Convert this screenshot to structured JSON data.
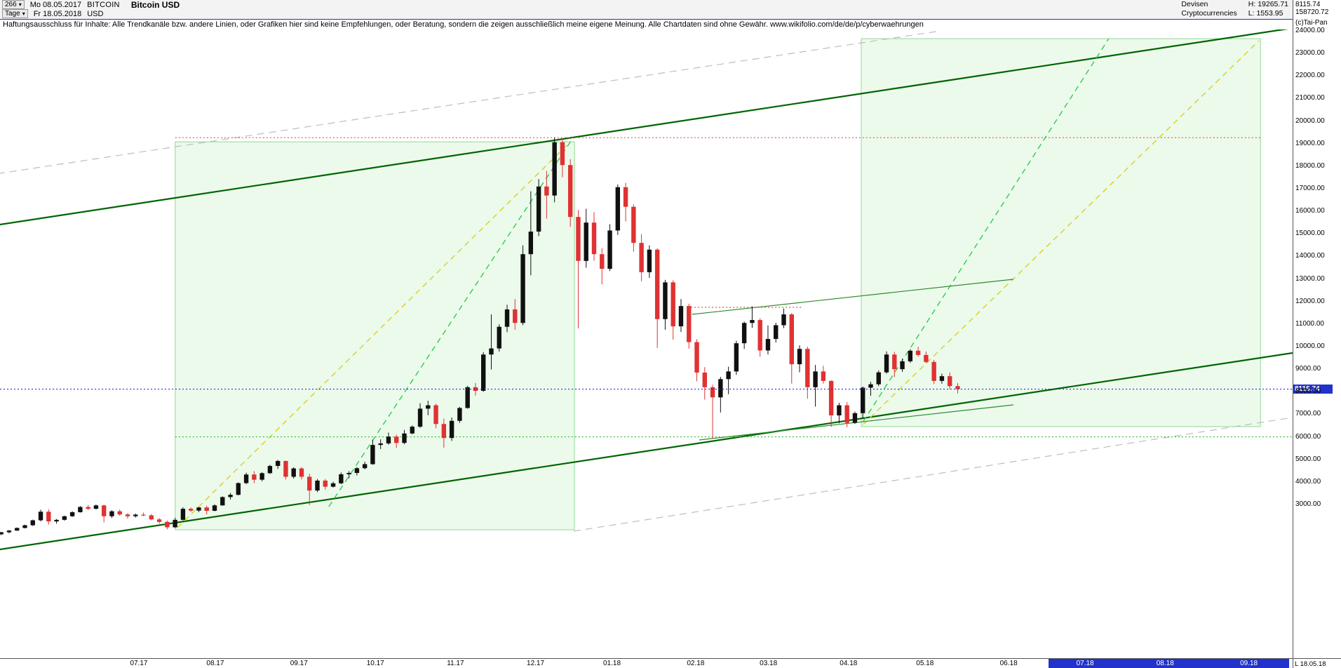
{
  "header": {
    "bars_count": "266",
    "dropdown_icon": "▾",
    "start_date": "Mo 08.05.2017",
    "symbol": "BITCOIN",
    "title": "Bitcoin USD",
    "period": "Tage",
    "end_date": "Fr 18.05.2018",
    "currency": "USD",
    "category_line1": "Devisen",
    "category_line2": "Cryptocurrencies",
    "high": "H: 19265.71",
    "low": "L: 1553.95",
    "last_price": "8115.74",
    "secondary_value": "158720.72",
    "copyright": "(c)Tai-Pan"
  },
  "disclaimer": "Haftungsausschluss für Inhalte: Alle Trendkanäle bzw. andere Linien, oder Grafiken hier sind keine Empfehlungen, oder Beratung, sondern die zeigen ausschließlich meine eigene Meinung. Alle Chartdaten sind ohne Gewähr.  www.wikifolio.com/de/de/p/cyberwaehrungen",
  "axis": {
    "price_tag": "8115.74",
    "corner_label": "L  18.05.18"
  },
  "chart_data": {
    "type": "candlestick",
    "title": "Bitcoin USD",
    "period": {
      "from": "Mo 08.05.2017",
      "to": "Fr 18.05.2018",
      "bars": 266,
      "interval": "Tage"
    },
    "stats": {
      "high": 19265.71,
      "low": 1553.95,
      "last": 8115.74
    },
    "ylim": [
      3000,
      24000
    ],
    "grid": false,
    "y_axis": {
      "tick_labels": [
        "24000.00",
        "23000.00",
        "22000.00",
        "21000.00",
        "20000.00",
        "19000.00",
        "18000.00",
        "17000.00",
        "16000.00",
        "15000.00",
        "14000.00",
        "13000.00",
        "12000.00",
        "11000.00",
        "10000.00",
        "9000.00",
        "8000.00",
        "7000.00",
        "6000.00",
        "5000.00",
        "4000.00",
        "3000.00"
      ]
    },
    "x_axis": {
      "month_labels": [
        {
          "label": "07.17",
          "day": 40,
          "future": false
        },
        {
          "label": "08.17",
          "day": 61,
          "future": false
        },
        {
          "label": "09.17",
          "day": 84,
          "future": false
        },
        {
          "label": "10.17",
          "day": 105,
          "future": false
        },
        {
          "label": "11.17",
          "day": 127,
          "future": false
        },
        {
          "label": "12.17",
          "day": 149,
          "future": false
        },
        {
          "label": "01.18",
          "day": 170,
          "future": false
        },
        {
          "label": "02.18",
          "day": 193,
          "future": false
        },
        {
          "label": "03.18",
          "day": 213,
          "future": false
        },
        {
          "label": "04.18",
          "day": 235,
          "future": false
        },
        {
          "label": "05.18",
          "day": 256,
          "future": false
        },
        {
          "label": "06.18",
          "day": 279,
          "future": false
        },
        {
          "label": "07.18",
          "day": 300,
          "future": true
        },
        {
          "label": "08.18",
          "day": 322,
          "future": true
        },
        {
          "label": "09.18",
          "day": 345,
          "future": true
        }
      ]
    },
    "colors": {
      "up": "#101010",
      "down": "#e03232",
      "accent_blue": "#2233cc"
    },
    "bar_day_step": 2.1721,
    "candles": [
      [
        1650,
        1700,
        1554,
        1680
      ],
      [
        1680,
        1790,
        1640,
        1770
      ],
      [
        1770,
        1870,
        1720,
        1845
      ],
      [
        1845,
        1985,
        1830,
        1960
      ],
      [
        1960,
        2110,
        1940,
        2080
      ],
      [
        2080,
        2330,
        2050,
        2300
      ],
      [
        2300,
        2770,
        2250,
        2680
      ],
      [
        2680,
        2790,
        2110,
        2250
      ],
      [
        2250,
        2360,
        2150,
        2320
      ],
      [
        2320,
        2510,
        2280,
        2480
      ],
      [
        2480,
        2700,
        2450,
        2660
      ],
      [
        2660,
        2930,
        2640,
        2890
      ],
      [
        2890,
        2980,
        2750,
        2810
      ],
      [
        2810,
        3000,
        2780,
        2960
      ],
      [
        2960,
        2990,
        2210,
        2480
      ],
      [
        2480,
        2750,
        2400,
        2700
      ],
      [
        2700,
        2780,
        2500,
        2560
      ],
      [
        2560,
        2620,
        2380,
        2480
      ],
      [
        2480,
        2600,
        2420,
        2550
      ],
      [
        2550,
        2640,
        2480,
        2520
      ],
      [
        2520,
        2580,
        2300,
        2340
      ],
      [
        2340,
        2400,
        2150,
        2230
      ],
      [
        2230,
        2290,
        1900,
        1990
      ],
      [
        1990,
        2410,
        1960,
        2320
      ],
      [
        2320,
        2880,
        2300,
        2810
      ],
      [
        2810,
        2870,
        2670,
        2730
      ],
      [
        2730,
        2890,
        2660,
        2870
      ],
      [
        2870,
        2950,
        2560,
        2720
      ],
      [
        2720,
        3010,
        2700,
        2960
      ],
      [
        2960,
        3360,
        2950,
        3330
      ],
      [
        3330,
        3510,
        3220,
        3430
      ],
      [
        3430,
        3980,
        3400,
        3950
      ],
      [
        3950,
        4410,
        3900,
        4330
      ],
      [
        4330,
        4480,
        3950,
        4100
      ],
      [
        4100,
        4430,
        4030,
        4390
      ],
      [
        4390,
        4760,
        4350,
        4710
      ],
      [
        4710,
        4980,
        4580,
        4930
      ],
      [
        4930,
        4950,
        4110,
        4230
      ],
      [
        4230,
        4650,
        4150,
        4600
      ],
      [
        4600,
        4660,
        4110,
        4230
      ],
      [
        4230,
        4360,
        2980,
        3620
      ],
      [
        3620,
        4130,
        3550,
        4060
      ],
      [
        4060,
        4130,
        3660,
        3790
      ],
      [
        3790,
        4010,
        3750,
        3940
      ],
      [
        3940,
        4420,
        3900,
        4340
      ],
      [
        4340,
        4480,
        4160,
        4400
      ],
      [
        4400,
        4660,
        4290,
        4610
      ],
      [
        4610,
        4900,
        4560,
        4790
      ],
      [
        4790,
        5870,
        4760,
        5640
      ],
      [
        5640,
        5890,
        5460,
        5710
      ],
      [
        5710,
        6190,
        5650,
        6010
      ],
      [
        6010,
        6100,
        5510,
        5730
      ],
      [
        5730,
        6310,
        5670,
        6150
      ],
      [
        6150,
        6510,
        6110,
        6450
      ],
      [
        6450,
        7490,
        6400,
        7250
      ],
      [
        7250,
        7600,
        6960,
        7400
      ],
      [
        7400,
        7470,
        6380,
        6570
      ],
      [
        6570,
        6810,
        5520,
        5950
      ],
      [
        5950,
        6860,
        5820,
        6710
      ],
      [
        6710,
        7330,
        6620,
        7280
      ],
      [
        7280,
        8260,
        7250,
        8200
      ],
      [
        8200,
        8390,
        7830,
        8040
      ],
      [
        8040,
        9760,
        8000,
        9650
      ],
      [
        9650,
        11430,
        8990,
        9920
      ],
      [
        9920,
        10990,
        9780,
        10880
      ],
      [
        10880,
        11860,
        10640,
        11650
      ],
      [
        11650,
        12110,
        10750,
        11050
      ],
      [
        11050,
        14490,
        10950,
        14100
      ],
      [
        14100,
        16890,
        13160,
        15100
      ],
      [
        15100,
        17430,
        14900,
        17100
      ],
      [
        17100,
        17790,
        15670,
        16700
      ],
      [
        16700,
        19266,
        16400,
        19060
      ],
      [
        19060,
        19240,
        17510,
        18050
      ],
      [
        18050,
        18310,
        15310,
        15750
      ],
      [
        15750,
        16060,
        10810,
        13800
      ],
      [
        13800,
        16110,
        13500,
        15500
      ],
      [
        15500,
        15960,
        13810,
        14100
      ],
      [
        14100,
        14360,
        12760,
        13450
      ],
      [
        13450,
        15430,
        13350,
        15150
      ],
      [
        15150,
        17190,
        14950,
        17070
      ],
      [
        17070,
        17260,
        15550,
        16200
      ],
      [
        16200,
        16310,
        14210,
        14600
      ],
      [
        14600,
        14990,
        12900,
        13300
      ],
      [
        13300,
        14490,
        13050,
        14300
      ],
      [
        14300,
        14360,
        9940,
        11220
      ],
      [
        11220,
        12960,
        10750,
        12850
      ],
      [
        12850,
        12940,
        10310,
        10900
      ],
      [
        10900,
        12110,
        10650,
        11800
      ],
      [
        11800,
        11900,
        9910,
        10200
      ],
      [
        10200,
        10330,
        8460,
        8850
      ],
      [
        8850,
        9090,
        7650,
        8200
      ],
      [
        8200,
        8310,
        5920,
        7750
      ],
      [
        7750,
        8660,
        7080,
        8560
      ],
      [
        8560,
        9110,
        7890,
        8900
      ],
      [
        8900,
        10260,
        8750,
        10150
      ],
      [
        10150,
        11110,
        9900,
        11050
      ],
      [
        11050,
        11790,
        10830,
        11180
      ],
      [
        11180,
        11260,
        9550,
        9830
      ],
      [
        9830,
        10940,
        9650,
        10340
      ],
      [
        10340,
        11060,
        10180,
        10950
      ],
      [
        10950,
        11690,
        10820,
        11430
      ],
      [
        11430,
        11490,
        8360,
        9220
      ],
      [
        9220,
        10060,
        8860,
        9900
      ],
      [
        9900,
        10000,
        7690,
        8200
      ],
      [
        8200,
        9190,
        7340,
        8900
      ],
      [
        8900,
        9150,
        8360,
        8480
      ],
      [
        8480,
        8510,
        6440,
        6950
      ],
      [
        6950,
        7510,
        6600,
        7400
      ],
      [
        7400,
        7540,
        6430,
        6620
      ],
      [
        6620,
        7120,
        6570,
        7050
      ],
      [
        7050,
        8230,
        6810,
        8180
      ],
      [
        8180,
        8440,
        7820,
        8330
      ],
      [
        8330,
        8950,
        8250,
        8860
      ],
      [
        8860,
        9790,
        8800,
        9650
      ],
      [
        9650,
        9770,
        8650,
        9000
      ],
      [
        9000,
        9470,
        8880,
        9350
      ],
      [
        9350,
        9890,
        9280,
        9820
      ],
      [
        9820,
        9995,
        9560,
        9630
      ],
      [
        9630,
        9780,
        9270,
        9320
      ],
      [
        9320,
        9410,
        8340,
        8480
      ],
      [
        8480,
        8800,
        8360,
        8690
      ],
      [
        8690,
        8860,
        8110,
        8250
      ],
      [
        8250,
        8390,
        7930,
        8115.74
      ]
    ],
    "overlays": {
      "boxes": [
        {
          "name": "rally-2017-box",
          "d1": 50,
          "p1": 1880,
          "d2": 159.7,
          "p2": 19080,
          "fill": "#ddf6dd",
          "opacity": 0.55,
          "border": "#94d894"
        },
        {
          "name": "projection-2018-box",
          "d1": 238.5,
          "p1": 6453,
          "d2": 348.2,
          "p2": 23655,
          "fill": "#ddf6dd",
          "opacity": 0.55,
          "border": "#94d894"
        }
      ],
      "lines": [
        {
          "name": "outer-channel-upper-gray",
          "d1": -2,
          "p1": 17590,
          "d2": 260.3,
          "p2": 24000,
          "color": "#bdbdbd",
          "width": 1.2,
          "dash": "10,7"
        },
        {
          "name": "outer-channel-lower-gray",
          "d1": 159.5,
          "p1": 1817,
          "d2": 357,
          "p2": 6858,
          "color": "#bdbdbd",
          "width": 1.2,
          "dash": "10,7"
        },
        {
          "name": "trend-channel-upper",
          "d1": -2,
          "p1": 15320,
          "d2": 357,
          "p2": 24124,
          "color": "#006400",
          "width": 2.2,
          "dash": ""
        },
        {
          "name": "trend-channel-lower",
          "d1": -2,
          "p1": 916,
          "d2": 357,
          "p2": 9720,
          "color": "#006400",
          "width": 2.2,
          "dash": ""
        },
        {
          "name": "rally-trendline-2017",
          "d1": 92.2,
          "p1": 2907,
          "d2": 159.1,
          "p2": 19205,
          "color": "#2ecc4e",
          "width": 1.4,
          "dash": "8,6"
        },
        {
          "name": "rally-projection-2018",
          "d1": 239,
          "p1": 6671,
          "d2": 306.5,
          "p2": 23655,
          "color": "#2ecc4e",
          "width": 1.4,
          "dash": "8,6"
        },
        {
          "name": "box-diagonal-2017-yellow",
          "d1": 50.6,
          "p1": 1976,
          "d2": 158,
          "p2": 18987,
          "color": "#d9d01f",
          "width": 1.4,
          "dash": "8,6"
        },
        {
          "name": "box-diagonal-projection-yellow",
          "d1": 239,
          "p1": 6546,
          "d2": 347.8,
          "p2": 23562,
          "color": "#d9d01f",
          "width": 1.4,
          "dash": "8,6"
        },
        {
          "name": "mid-trendline-green",
          "d1": 192,
          "p1": 11431,
          "d2": 280.3,
          "p2": 12987,
          "color": "#2e8b2e",
          "width": 1.2,
          "dash": ""
        },
        {
          "name": "support-trendline-green",
          "d1": 194,
          "p1": 5862,
          "d2": 280.3,
          "p2": 7417,
          "color": "#2e8b2e",
          "width": 1.2,
          "dash": ""
        }
      ],
      "hlines": [
        {
          "name": "ath-line",
          "price": 19265.71,
          "d1": 50,
          "d2": 348.2,
          "color": "#e05050",
          "dash": "2,3",
          "width": 1.2,
          "top": false
        },
        {
          "name": "support-6000-line",
          "price": 6000,
          "d1": 50,
          "d2": 357,
          "color": "#2db52d",
          "dash": "2,3",
          "width": 1.2,
          "top": false
        },
        {
          "name": "feb-high-line",
          "price": 11742,
          "d1": 191.7,
          "d2": 222.2,
          "color": "#e05050",
          "dash": "2,3",
          "width": 1.2,
          "top": false
        },
        {
          "name": "last-price-line",
          "price": 8115.74,
          "d1": -2,
          "d2": 357,
          "color": "#2a2ad8",
          "dash": "2,3",
          "width": 1.2,
          "top": true
        }
      ],
      "future_highlight": {
        "name": "future-months-highlight",
        "day_from": 290,
        "day_to": 356,
        "color": "#2233cc"
      }
    }
  }
}
